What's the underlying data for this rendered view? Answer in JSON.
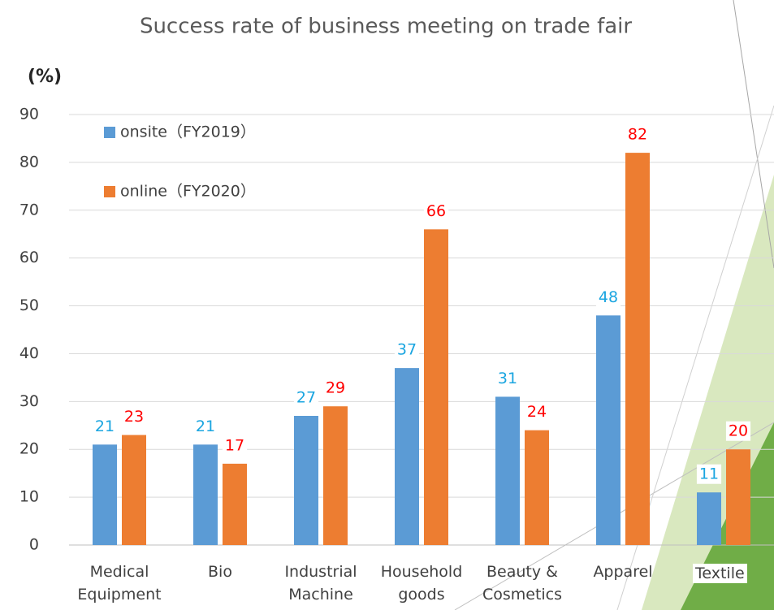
{
  "chart_data": {
    "type": "bar",
    "title": "Success rate of business meeting on trade fair",
    "y_label": "(%)",
    "categories": [
      "Medical Equipment",
      "Bio",
      "Industrial Machine",
      "Household goods",
      "Beauty & Cosmetics",
      "Apparel",
      "Textile"
    ],
    "series": [
      {
        "name": "onsite（FY2019）",
        "color": "#5b9bd5",
        "label_color": "#1aa5e0",
        "values": [
          21,
          21,
          27,
          37,
          31,
          48,
          11
        ]
      },
      {
        "name": "online（FY2020）",
        "color": "#ed7d31",
        "label_color": "#ff0000",
        "values": [
          23,
          17,
          29,
          66,
          24,
          82,
          20
        ]
      }
    ],
    "ylim": [
      0,
      90
    ],
    "yticks": [
      0,
      10,
      20,
      30,
      40,
      50,
      60,
      70,
      80,
      90
    ],
    "grid": true
  }
}
